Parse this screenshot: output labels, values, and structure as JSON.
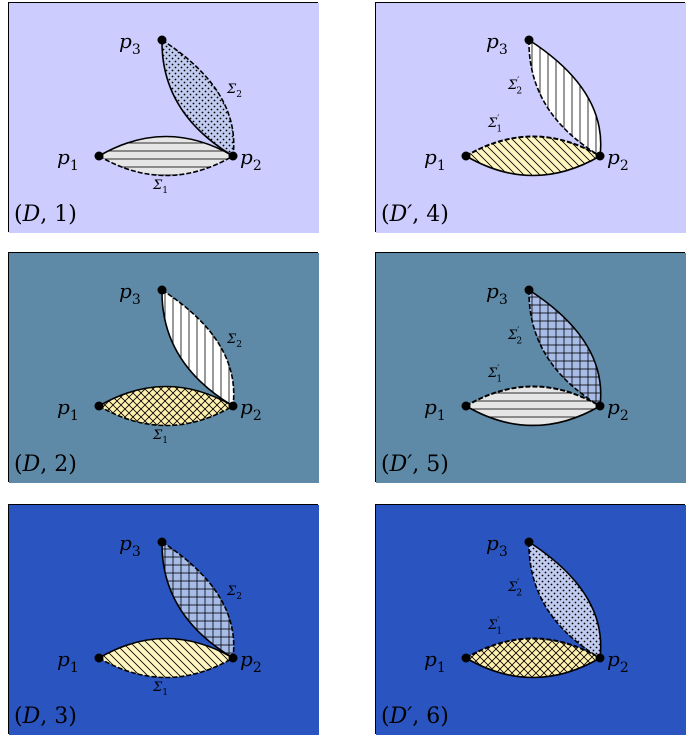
{
  "panels": [
    {
      "id": "p1",
      "caption": [
        "(",
        "D",
        ", 1)"
      ],
      "bg": "#ccccff",
      "bottom_fill": "horizontal-lines",
      "bottom_color": "#e6e6e6",
      "top_fill": "dots",
      "top_color": "#c2ccf0",
      "primed": false
    },
    {
      "id": "p4",
      "caption": [
        "(",
        "D′",
        ", 4)"
      ],
      "bg": "#ccccff",
      "bottom_fill": "diagonal-lines",
      "bottom_color": "#fff5c0",
      "top_fill": "vertical-lines",
      "top_color": "#ffffff",
      "primed": true
    },
    {
      "id": "p2",
      "caption": [
        "(",
        "D",
        ", 2)"
      ],
      "bg": "#5e8aa8",
      "bottom_fill": "crosshatch-diagonal",
      "bottom_color": "#fff0b0",
      "top_fill": "vertical-lines",
      "top_color": "#ffffff",
      "primed": false
    },
    {
      "id": "p5",
      "caption": [
        "(",
        "D′",
        ", 5)"
      ],
      "bg": "#5e8aa8",
      "bottom_fill": "horizontal-lines",
      "bottom_color": "#e6e6e6",
      "top_fill": "grid",
      "top_color": "#a8bce8",
      "primed": true
    },
    {
      "id": "p3",
      "caption": [
        "(",
        "D",
        ", 3)"
      ],
      "bg": "#2a55c0",
      "bottom_fill": "diagonal-lines",
      "bottom_color": "#fff5c0",
      "top_fill": "grid",
      "top_color": "#a8bce8",
      "primed": false
    },
    {
      "id": "p6",
      "caption": [
        "(",
        "D′",
        ", 6)"
      ],
      "bg": "#2a55c0",
      "bottom_fill": "crosshatch-diagonal",
      "bottom_color": "#fff0b0",
      "top_fill": "dots",
      "top_color": "#c2ccf0",
      "primed": true
    }
  ],
  "labels": {
    "p1": "p",
    "p1_sub": "1",
    "p2": "p",
    "p2_sub": "2",
    "p3": "p",
    "p3_sub": "3",
    "sigma1": "Σ",
    "sigma1_sub": "1",
    "sigma2": "Σ",
    "sigma2_sub": "2",
    "prime": "′"
  }
}
